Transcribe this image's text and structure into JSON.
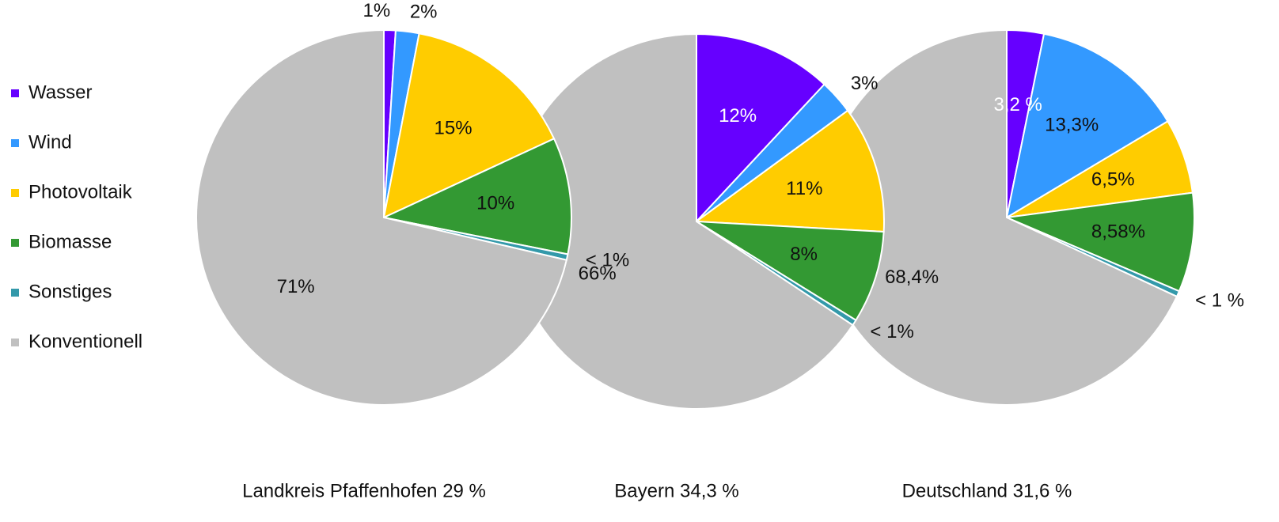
{
  "chart_data": [
    {
      "type": "pie",
      "title": "Landkreis Pfaffenhofen 29 %",
      "categories": [
        "Wasser",
        "Wind",
        "Photovoltaik",
        "Biomasse",
        "Sonstiges",
        "Konventionell"
      ],
      "values": [
        1,
        2,
        15,
        10,
        0.5,
        71
      ],
      "value_labels": [
        "1%",
        "2%",
        "15%",
        "10%",
        "< 1%",
        "71%"
      ],
      "colors": [
        "#6600ff",
        "#3399ff",
        "#ffcc00",
        "#339933",
        "#3399aa",
        "#c0c0c0"
      ]
    },
    {
      "type": "pie",
      "title": "Bayern 34,3 %",
      "categories": [
        "Wasser",
        "Wind",
        "Photovoltaik",
        "Biomasse",
        "Sonstiges",
        "Konventionell"
      ],
      "values": [
        12,
        3,
        11,
        8,
        0.5,
        66
      ],
      "value_labels": [
        "12%",
        "3%",
        "11%",
        "8%",
        "< 1%",
        "66%"
      ],
      "colors": [
        "#6600ff",
        "#3399ff",
        "#ffcc00",
        "#339933",
        "#3399aa",
        "#c0c0c0"
      ]
    },
    {
      "type": "pie",
      "title": "Deutschland 31,6 %",
      "categories": [
        "Wasser",
        "Wind",
        "Photovoltaik",
        "Biomasse",
        "Sonstiges",
        "Konventionell"
      ],
      "values": [
        3.2,
        13.3,
        6.5,
        8.58,
        0.5,
        68.4
      ],
      "value_labels": [
        "3,2 %",
        "13,3%",
        "6,5%",
        "8,58%",
        "< 1 %",
        "68,4%"
      ],
      "colors": [
        "#6600ff",
        "#3399ff",
        "#ffcc00",
        "#339933",
        "#3399aa",
        "#c0c0c0"
      ]
    }
  ]
}
